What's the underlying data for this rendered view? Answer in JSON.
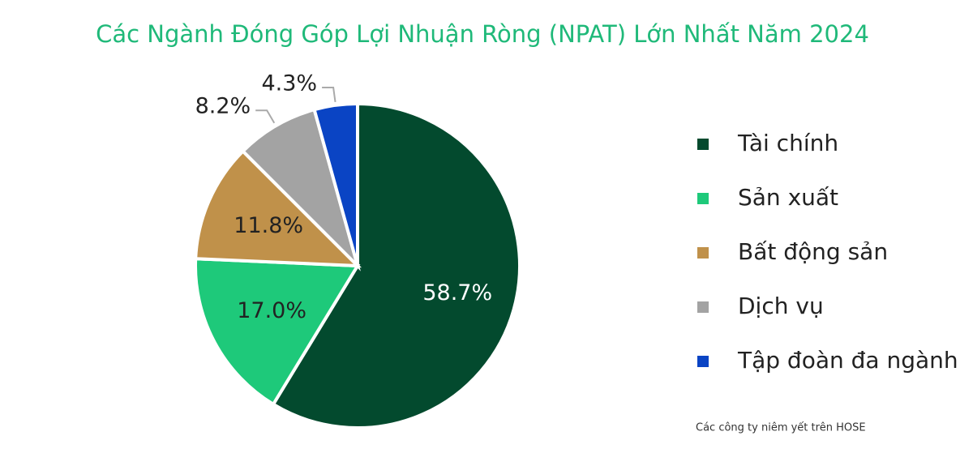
{
  "chart_data": {
    "type": "pie",
    "title": "Các Ngành Đóng Góp Lợi Nhuận Ròng (NPAT) Lớn Nhất Năm 2024",
    "categories": [
      "Tài chính",
      "Sản xuất",
      "Bất động sản",
      "Dịch vụ",
      "Tập đoàn đa ngành"
    ],
    "values": [
      58.7,
      17.0,
      11.8,
      8.2,
      4.3
    ],
    "value_labels": [
      "58.7%",
      "17.0%",
      "11.8%",
      "8.2%",
      "4.3%"
    ],
    "colors": [
      "#034a2e",
      "#1ec97a",
      "#c0914a",
      "#a3a3a3",
      "#0a44c4"
    ],
    "legend": "right",
    "note": "Các công ty niêm yết trên HOSE"
  }
}
